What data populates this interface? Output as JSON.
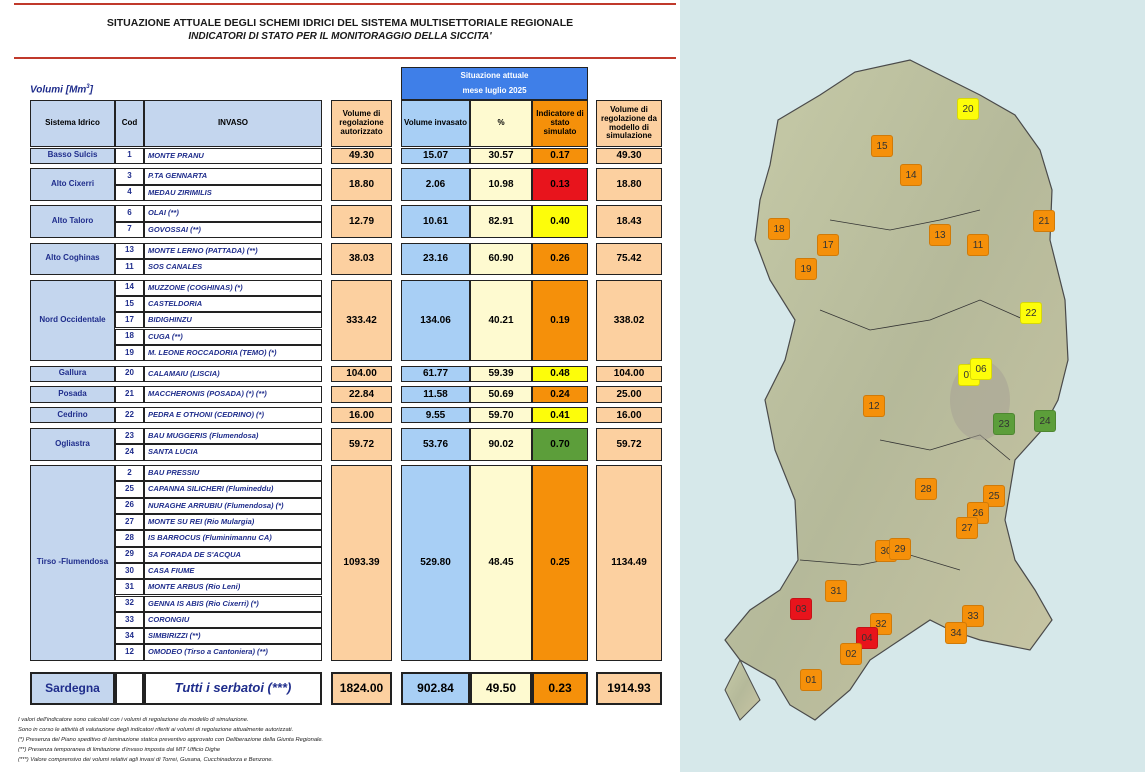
{
  "header": {
    "line1": "SITUAZIONE ATTUALE DEGLI SCHEMI IDRICI DEL SISTEMA MULTISETTORIALE REGIONALE",
    "line2": "INDICATORI DI STATO PER IL MONITORAGGIO DELLA SICCITA'"
  },
  "table": {
    "units_label": "Volumi [Mm",
    "units_sup": "3",
    "units_end": "]",
    "situation_title": "Situazione attuale",
    "situation_sub": "mese luglio 2025",
    "col_sistema": "Sistema Idrico",
    "col_cod": "Cod",
    "col_invaso": "INVASO",
    "col_vol_reg": "Volume di regolazione autorizzato",
    "col_vol_inv": "Volume invasato",
    "col_pct": "%",
    "col_ind": "Indicatore di stato simulato",
    "col_vol_sim": "Volume di regolazione da modello di simulazione",
    "groups": [
      {
        "sistema": "Basso Sulcis",
        "rows": [
          {
            "cod": "1",
            "name": "MONTE PRANU"
          }
        ],
        "vol_reg": "49.30",
        "vol_inv": "15.07",
        "pct": "30.57",
        "ind": "0.17",
        "ind_color": "#f5900a",
        "vol_sim": "49.30"
      },
      {
        "sistema": "Alto Cixerri",
        "rows": [
          {
            "cod": "3",
            "name": "P.TA GENNARTA"
          },
          {
            "cod": "4",
            "name": "MEDAU ZIRIMILIS"
          }
        ],
        "vol_reg": "18.80",
        "vol_inv": "2.06",
        "pct": "10.98",
        "ind": "0.13",
        "ind_color": "#e8141c",
        "vol_sim": "18.80"
      },
      {
        "sistema": "Alto Taloro",
        "rows": [
          {
            "cod": "6",
            "name": "OLAI (**)"
          },
          {
            "cod": "7",
            "name": "GOVOSSAI (**)"
          }
        ],
        "vol_reg": "12.79",
        "vol_inv": "10.61",
        "pct": "82.91",
        "ind": "0.40",
        "ind_color": "#fdfd0a",
        "vol_sim": "18.43"
      },
      {
        "sistema": "Alto Coghinas",
        "rows": [
          {
            "cod": "13",
            "name": "MONTE LERNO (PATTADA) (**)"
          },
          {
            "cod": "11",
            "name": "SOS CANALES"
          }
        ],
        "vol_reg": "38.03",
        "vol_inv": "23.16",
        "pct": "60.90",
        "ind": "0.26",
        "ind_color": "#f5900a",
        "vol_sim": "75.42"
      },
      {
        "sistema": "Nord Occidentale",
        "rows": [
          {
            "cod": "14",
            "name": "MUZZONE (COGHINAS) (*)"
          },
          {
            "cod": "15",
            "name": "CASTELDORIA"
          },
          {
            "cod": "17",
            "name": "BIDIGHINZU"
          },
          {
            "cod": "18",
            "name": "CUGA (**)"
          },
          {
            "cod": "19",
            "name": "M. LEONE ROCCADORIA (TEMO) (*)"
          }
        ],
        "vol_reg": "333.42",
        "vol_inv": "134.06",
        "pct": "40.21",
        "ind": "0.19",
        "ind_color": "#f5900a",
        "vol_sim": "338.02"
      },
      {
        "sistema": "Gallura",
        "rows": [
          {
            "cod": "20",
            "name": "CALAMAIU (LISCIA)"
          }
        ],
        "vol_reg": "104.00",
        "vol_inv": "61.77",
        "pct": "59.39",
        "ind": "0.48",
        "ind_color": "#fdfd0a",
        "vol_sim": "104.00"
      },
      {
        "sistema": "Posada",
        "rows": [
          {
            "cod": "21",
            "name": "MACCHERONIS (POSADA) (*) (**)"
          }
        ],
        "vol_reg": "22.84",
        "vol_inv": "11.58",
        "pct": "50.69",
        "ind": "0.24",
        "ind_color": "#f5900a",
        "vol_sim": "25.00"
      },
      {
        "sistema": "Cedrino",
        "rows": [
          {
            "cod": "22",
            "name": "PEDRA E OTHONI (CEDRINO) (*)"
          }
        ],
        "vol_reg": "16.00",
        "vol_inv": "9.55",
        "pct": "59.70",
        "ind": "0.41",
        "ind_color": "#fdfd0a",
        "vol_sim": "16.00"
      },
      {
        "sistema": "Ogliastra",
        "rows": [
          {
            "cod": "23",
            "name": "BAU MUGGERIS (Flumendosa)"
          },
          {
            "cod": "24",
            "name": "SANTA LUCIA"
          }
        ],
        "vol_reg": "59.72",
        "vol_inv": "53.76",
        "pct": "90.02",
        "ind": "0.70",
        "ind_color": "#5c9e3a",
        "vol_sim": "59.72"
      },
      {
        "sistema": "Tirso -Flumendosa",
        "rows": [
          {
            "cod": "2",
            "name": "BAU PRESSIU"
          },
          {
            "cod": "25",
            "name": "CAPANNA SILICHERI (Flumineddu)"
          },
          {
            "cod": "26",
            "name": "NURAGHE ARRUBIU (Flumendosa) (*)"
          },
          {
            "cod": "27",
            "name": "MONTE SU REI (Rio Mulargia)"
          },
          {
            "cod": "28",
            "name": "IS BARROCUS (Fluminimannu CA)"
          },
          {
            "cod": "29",
            "name": "SA FORADA DE S'ACQUA"
          },
          {
            "cod": "30",
            "name": "CASA FIUME"
          },
          {
            "cod": "31",
            "name": "MONTE ARBUS  (Rio Leni)"
          },
          {
            "cod": "32",
            "name": "GENNA IS ABIS  (Rio Cixerri) (*)"
          },
          {
            "cod": "33",
            "name": "CORONGIU"
          },
          {
            "cod": "34",
            "name": "SIMBIRIZZI  (**)"
          },
          {
            "cod": "12",
            "name": "OMODEO (Tirso a Cantoniera)  (**)"
          }
        ],
        "vol_reg": "1093.39",
        "vol_inv": "529.80",
        "pct": "48.45",
        "ind": "0.25",
        "ind_color": "#f5900a",
        "vol_sim": "1134.49"
      }
    ],
    "total": {
      "label": "Sardegna",
      "name": "Tutti i serbatoi (***)",
      "vol_reg": "1824.00",
      "vol_inv": "902.84",
      "pct": "49.50",
      "ind": "0.23",
      "ind_color": "#f5900a",
      "vol_sim": "1914.93"
    }
  },
  "footnotes": [
    "I valori dell'indicatore sono calcolati con i volumi di regolazione da modello di simulazione.",
    "Sono in corso le attività di valutazione degli indicatori riferiti ai volumi di regolazione attualmente autorizzati.",
    "(*) Presenza del Piano speditivo di laminazione statica preventivo approvato con Deliberazione della Giunta Regionale.",
    "(**) Presenza temporanea di limitazione d'invaso imposta dal MIT Ufficio Dighe",
    "(***) Valore comprensivo dei volumi relativi agli invasi di Torrei, Gusana, Cucchinadorza e Benzone."
  ],
  "colors": {
    "orange": "#f5900a",
    "yellow": "#fdfd0a",
    "red": "#e8141c",
    "green": "#5c9e3a",
    "peach": "#fcd0a0",
    "lightblue": "#a8cff5",
    "cream": "#fefad0",
    "header_blue": "#3f7fe8",
    "sistema_bg": "#c4d6ee"
  },
  "map_markers": [
    {
      "label": "20",
      "color": "#fdfd0a"
    },
    {
      "label": "15",
      "color": "#f5900a"
    },
    {
      "label": "14",
      "color": "#f5900a"
    },
    {
      "label": "21",
      "color": "#f5900a"
    },
    {
      "label": "18",
      "color": "#f5900a"
    },
    {
      "label": "17",
      "color": "#f5900a"
    },
    {
      "label": "13",
      "color": "#f5900a"
    },
    {
      "label": "11",
      "color": "#f5900a"
    },
    {
      "label": "19",
      "color": "#f5900a"
    },
    {
      "label": "22",
      "color": "#fdfd0a"
    },
    {
      "label": "07",
      "color": "#fdfd0a"
    },
    {
      "label": "06",
      "color": "#fdfd0a"
    },
    {
      "label": "12",
      "color": "#f5900a"
    },
    {
      "label": "23",
      "color": "#5c9e3a"
    },
    {
      "label": "24",
      "color": "#5c9e3a"
    },
    {
      "label": "28",
      "color": "#f5900a"
    },
    {
      "label": "25",
      "color": "#f5900a"
    },
    {
      "label": "26",
      "color": "#f5900a"
    },
    {
      "label": "27",
      "color": "#f5900a"
    },
    {
      "label": "30",
      "color": "#f5900a"
    },
    {
      "label": "29",
      "color": "#f5900a"
    },
    {
      "label": "31",
      "color": "#f5900a"
    },
    {
      "label": "33",
      "color": "#f5900a"
    },
    {
      "label": "03",
      "color": "#e8141c"
    },
    {
      "label": "32",
      "color": "#f5900a"
    },
    {
      "label": "34",
      "color": "#f5900a"
    },
    {
      "label": "04",
      "color": "#e8141c"
    },
    {
      "label": "02",
      "color": "#f5900a"
    },
    {
      "label": "01",
      "color": "#f5900a"
    }
  ]
}
